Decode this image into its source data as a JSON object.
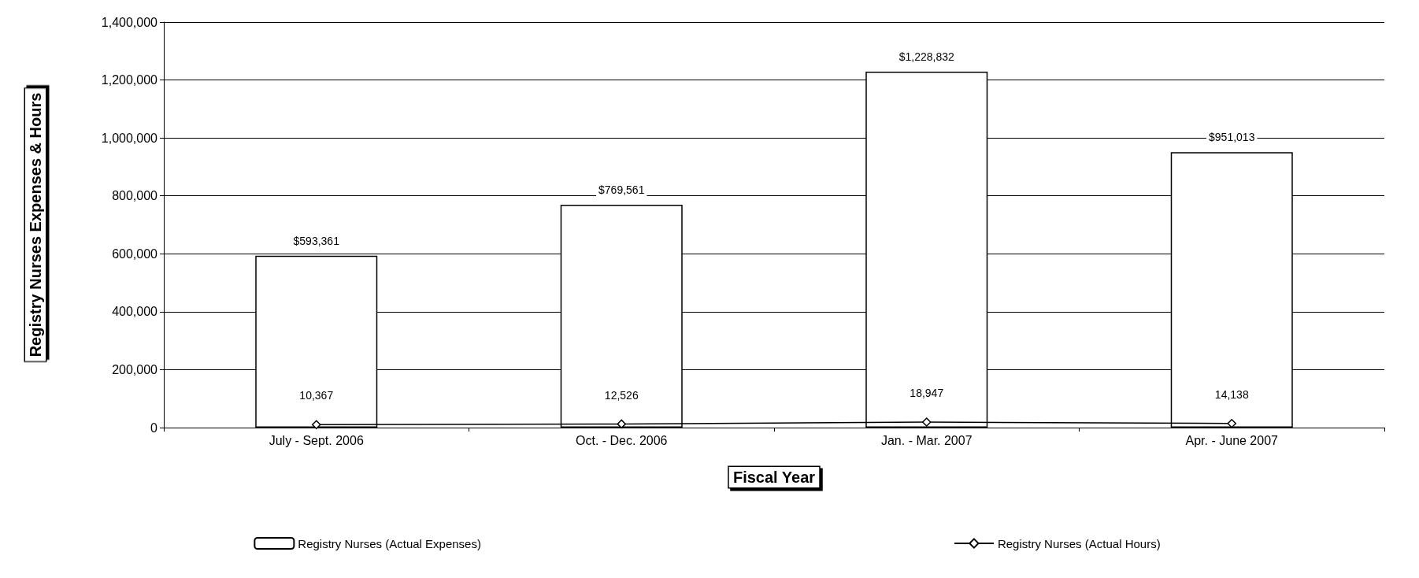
{
  "chart_data": {
    "type": "bar",
    "xlabel": "Fiscal Year",
    "ylabel": "Registry Nurses Expenses & Hours",
    "categories": [
      "July - Sept. 2006",
      "Oct. - Dec. 2006",
      "Jan. - Mar. 2007",
      "Apr. - June 2007"
    ],
    "series": [
      {
        "name": "Registry Nurses (Actual Expenses)",
        "color": "#ffffff",
        "values": [
          593361,
          769561,
          1228832,
          951013
        ],
        "value_labels": [
          "$593,361",
          "$769,561",
          "$1,228,832",
          "$951,013"
        ]
      },
      {
        "name": "Registry Nurses (Actual Hours)",
        "type": "line",
        "color": "#000000",
        "marker": "diamond",
        "values": [
          10367,
          12526,
          18947,
          14138
        ],
        "value_labels": [
          "10,367",
          "12,526",
          "18,947",
          "14,138"
        ]
      }
    ],
    "ylim": [
      0,
      1400000
    ],
    "yticks": [
      {
        "value": 0,
        "label": "0"
      },
      {
        "value": 200000,
        "label": "200,000"
      },
      {
        "value": 400000,
        "label": "400,000"
      },
      {
        "value": 600000,
        "label": "600,000"
      },
      {
        "value": 800000,
        "label": "800,000"
      },
      {
        "value": 1000000,
        "label": "1,000,000"
      },
      {
        "value": 1200000,
        "label": "1,200,000"
      },
      {
        "value": 1400000,
        "label": "1,400,000"
      }
    ],
    "grid": "y",
    "legend": "bottom"
  }
}
